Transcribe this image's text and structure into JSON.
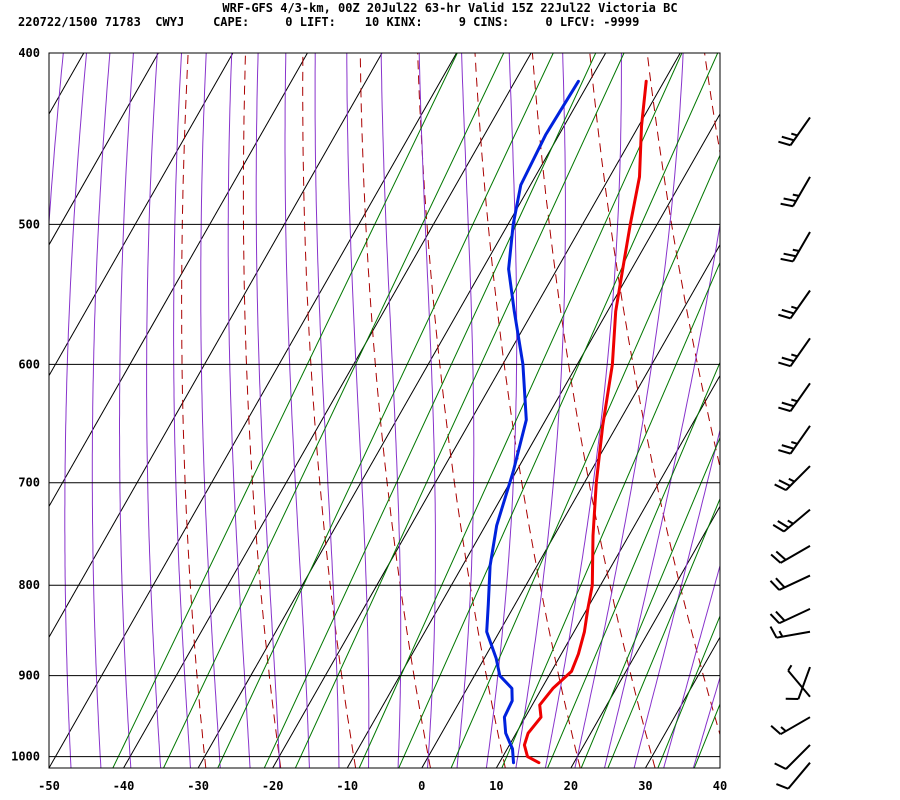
{
  "header": {
    "line1": "WRF-GFS 4/3-km, 00Z 20Jul22 63-hr Valid 15Z 22Jul22 Victoria BC",
    "line2": "220722/1500 71783  CWYJ    CAPE:     0 LIFT:    10 KINX:     9 CINS:     0 LFCV: -9999"
  },
  "chart_data": {
    "type": "line",
    "title": "WRF-GFS 4/3-km, 00Z 20Jul22 63-hr Valid 15Z 22Jul22 Victoria BC",
    "xlabel": "",
    "ylabel": "",
    "x_ticks": [
      -50,
      -40,
      -30,
      -20,
      -10,
      0,
      10,
      20,
      30,
      40
    ],
    "y_ticks": [
      400,
      500,
      600,
      700,
      800,
      900,
      1000
    ],
    "xlim": [
      -50,
      40
    ],
    "ylim_hPa": [
      1015,
      400
    ],
    "y_scale": "log",
    "grid": true,
    "colors": {
      "temperature": "#ee0000",
      "dewpoint": "#0022dd",
      "isotherm": "#000000",
      "dry_adiabat": "#aa0000",
      "moist_adiabat": "#8833cc",
      "mixing_ratio": "#007700",
      "wind_barb": "#000000"
    },
    "series": [
      {
        "key": "temperature",
        "points": [
          [
            1008,
            15.3
          ],
          [
            1000,
            13.3
          ],
          [
            985,
            12.0
          ],
          [
            970,
            11.6
          ],
          [
            950,
            12.1
          ],
          [
            935,
            11.0
          ],
          [
            915,
            11.5
          ],
          [
            895,
            12.7
          ],
          [
            875,
            12.3
          ],
          [
            850,
            11.4
          ],
          [
            825,
            10.1
          ],
          [
            800,
            8.9
          ],
          [
            750,
            5.2
          ],
          [
            700,
            1.6
          ],
          [
            650,
            -1.9
          ],
          [
            600,
            -5.3
          ],
          [
            560,
            -8.9
          ],
          [
            530,
            -11.2
          ],
          [
            500,
            -13.6
          ],
          [
            470,
            -16.0
          ],
          [
            440,
            -19.6
          ],
          [
            415,
            -22.4
          ]
        ]
      },
      {
        "key": "dewpoint",
        "points": [
          [
            1008,
            11.9
          ],
          [
            990,
            10.7
          ],
          [
            970,
            8.6
          ],
          [
            950,
            7.2
          ],
          [
            930,
            7.0
          ],
          [
            915,
            6.0
          ],
          [
            900,
            3.4
          ],
          [
            880,
            1.6
          ],
          [
            850,
            -1.7
          ],
          [
            820,
            -3.6
          ],
          [
            780,
            -6.3
          ],
          [
            740,
            -8.5
          ],
          [
            690,
            -10.4
          ],
          [
            645,
            -12.6
          ],
          [
            600,
            -17.3
          ],
          [
            560,
            -22.5
          ],
          [
            530,
            -26.5
          ],
          [
            500,
            -29.3
          ],
          [
            475,
            -31.3
          ],
          [
            445,
            -31.8
          ],
          [
            415,
            -31.5
          ]
        ]
      }
    ],
    "wind_barbs": [
      {
        "p": 1008,
        "dir": 220,
        "kt": 10
      },
      {
        "p": 985,
        "dir": 225,
        "kt": 10
      },
      {
        "p": 950,
        "dir": 240,
        "kt": 15
      },
      {
        "p": 925,
        "dir": 320,
        "kt": 5
      },
      {
        "p": 890,
        "dir": 200,
        "kt": 10
      },
      {
        "p": 850,
        "dir": 260,
        "kt": 15
      },
      {
        "p": 825,
        "dir": 245,
        "kt": 20
      },
      {
        "p": 790,
        "dir": 245,
        "kt": 20
      },
      {
        "p": 760,
        "dir": 240,
        "kt": 20
      },
      {
        "p": 725,
        "dir": 230,
        "kt": 25
      },
      {
        "p": 685,
        "dir": 225,
        "kt": 25
      },
      {
        "p": 650,
        "dir": 215,
        "kt": 25
      },
      {
        "p": 615,
        "dir": 215,
        "kt": 25
      },
      {
        "p": 580,
        "dir": 215,
        "kt": 25
      },
      {
        "p": 545,
        "dir": 215,
        "kt": 25
      },
      {
        "p": 505,
        "dir": 210,
        "kt": 25
      },
      {
        "p": 470,
        "dir": 210,
        "kt": 25
      },
      {
        "p": 435,
        "dir": 215,
        "kt": 25
      }
    ]
  }
}
